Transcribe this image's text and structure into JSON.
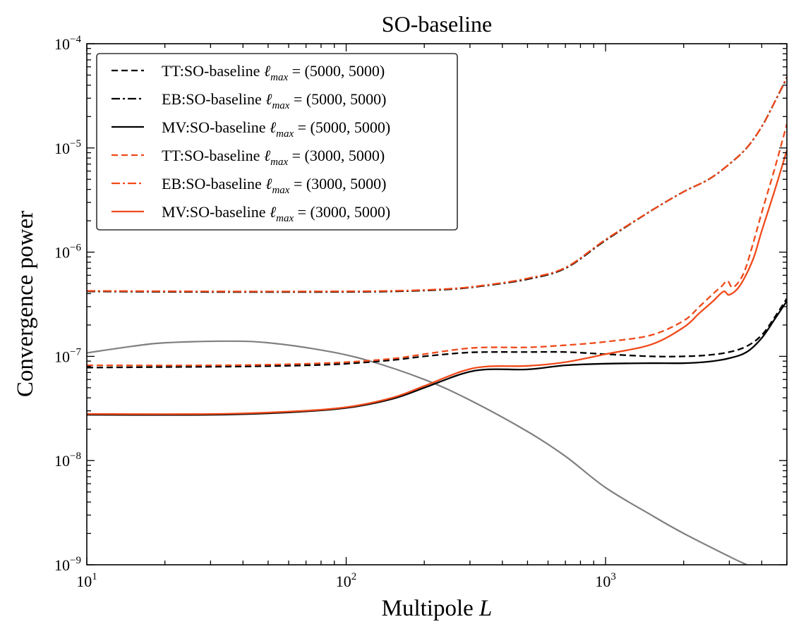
{
  "chart_data": {
    "type": "line",
    "title": "SO-baseline",
    "xlabel": "Multipole",
    "xlabel_var": "L",
    "ylabel": "Convergence power",
    "xscale": "log",
    "yscale": "log",
    "xlim": [
      10,
      5000
    ],
    "ylim": [
      1e-09,
      0.0001
    ],
    "grid": false,
    "legend_position": "top-left",
    "x_ticks": [
      {
        "value": 10,
        "base": "10",
        "exp": "1"
      },
      {
        "value": 100,
        "base": "10",
        "exp": "2"
      },
      {
        "value": 1000,
        "base": "10",
        "exp": "3"
      }
    ],
    "y_ticks": [
      {
        "value": 1e-09,
        "base": "10",
        "exp": "−9"
      },
      {
        "value": 1e-08,
        "base": "10",
        "exp": "−8"
      },
      {
        "value": 1e-07,
        "base": "10",
        "exp": "−7"
      },
      {
        "value": 1e-06,
        "base": "10",
        "exp": "−6"
      },
      {
        "value": 1e-05,
        "base": "10",
        "exp": "−5"
      },
      {
        "value": 0.0001,
        "base": "10",
        "exp": "−4"
      }
    ],
    "series": [
      {
        "name": "TT:SO-baseline",
        "ell_max": "(5000, 5000)",
        "color": "#000000",
        "style": "dashed",
        "points": [
          [
            10,
            7.8e-08
          ],
          [
            20,
            7.9e-08
          ],
          [
            40,
            8e-08
          ],
          [
            70,
            8.2e-08
          ],
          [
            100,
            8.5e-08
          ],
          [
            150,
            9.2e-08
          ],
          [
            200,
            1e-07
          ],
          [
            280,
            1.08e-07
          ],
          [
            350,
            1.1e-07
          ],
          [
            500,
            1.1e-07
          ],
          [
            700,
            1.1e-07
          ],
          [
            1000,
            1.05e-07
          ],
          [
            1500,
            1e-07
          ],
          [
            2000,
            1e-07
          ],
          [
            2500,
            1.03e-07
          ],
          [
            3000,
            1.1e-07
          ],
          [
            3500,
            1.25e-07
          ],
          [
            4000,
            1.6e-07
          ],
          [
            4500,
            2.4e-07
          ],
          [
            5000,
            3.6e-07
          ]
        ]
      },
      {
        "name": "EB:SO-baseline",
        "ell_max": "(5000, 5000)",
        "color": "#000000",
        "style": "dashdot",
        "points": [
          [
            10,
            4.2e-07
          ],
          [
            30,
            4.15e-07
          ],
          [
            80,
            4.15e-07
          ],
          [
            150,
            4.2e-07
          ],
          [
            250,
            4.4e-07
          ],
          [
            350,
            4.8e-07
          ],
          [
            500,
            5.5e-07
          ],
          [
            700,
            7e-07
          ],
          [
            1000,
            1.3e-06
          ],
          [
            1500,
            2.5e-06
          ],
          [
            2000,
            3.8e-06
          ],
          [
            2500,
            5e-06
          ],
          [
            3000,
            7e-06
          ],
          [
            3500,
            1e-05
          ],
          [
            4000,
            1.6e-05
          ],
          [
            4500,
            2.8e-05
          ],
          [
            5000,
            4.7e-05
          ]
        ]
      },
      {
        "name": "MV:SO-baseline",
        "ell_max": "(5000, 5000)",
        "color": "#000000",
        "style": "solid",
        "points": [
          [
            10,
            2.75e-08
          ],
          [
            30,
            2.75e-08
          ],
          [
            60,
            2.9e-08
          ],
          [
            100,
            3.2e-08
          ],
          [
            150,
            3.9e-08
          ],
          [
            200,
            5e-08
          ],
          [
            280,
            6.8e-08
          ],
          [
            350,
            7.5e-08
          ],
          [
            500,
            7.5e-08
          ],
          [
            700,
            8.2e-08
          ],
          [
            1000,
            8.5e-08
          ],
          [
            1500,
            8.6e-08
          ],
          [
            2000,
            8.6e-08
          ],
          [
            2500,
            8.9e-08
          ],
          [
            3000,
            9.6e-08
          ],
          [
            3500,
            1.1e-07
          ],
          [
            4000,
            1.5e-07
          ],
          [
            4500,
            2.3e-07
          ],
          [
            5000,
            3.4e-07
          ]
        ]
      },
      {
        "name": "TT:SO-baseline",
        "ell_max": "(3000, 5000)",
        "color": "#f04a1a",
        "style": "dashed",
        "points": [
          [
            10,
            8.2e-08
          ],
          [
            30,
            8.2e-08
          ],
          [
            60,
            8.4e-08
          ],
          [
            100,
            8.8e-08
          ],
          [
            150,
            9.5e-08
          ],
          [
            200,
            1.05e-07
          ],
          [
            280,
            1.18e-07
          ],
          [
            350,
            1.22e-07
          ],
          [
            500,
            1.22e-07
          ],
          [
            700,
            1.28e-07
          ],
          [
            1000,
            1.38e-07
          ],
          [
            1500,
            1.6e-07
          ],
          [
            2000,
            2.2e-07
          ],
          [
            2300,
            3e-07
          ],
          [
            2600,
            4e-07
          ],
          [
            2800,
            4.7e-07
          ],
          [
            2950,
            5.3e-07
          ],
          [
            3100,
            4.6e-07
          ],
          [
            3400,
            6.2e-07
          ],
          [
            3700,
            1.2e-06
          ],
          [
            4000,
            2.4e-06
          ],
          [
            4500,
            6.5e-06
          ],
          [
            5000,
            1.7e-05
          ]
        ]
      },
      {
        "name": "EB:SO-baseline",
        "ell_max": "(3000, 5000)",
        "color": "#f04a1a",
        "style": "dashdot",
        "points": [
          [
            10,
            4.25e-07
          ],
          [
            30,
            4.2e-07
          ],
          [
            80,
            4.2e-07
          ],
          [
            150,
            4.25e-07
          ],
          [
            250,
            4.45e-07
          ],
          [
            350,
            4.85e-07
          ],
          [
            500,
            5.6e-07
          ],
          [
            700,
            7.1e-07
          ],
          [
            1000,
            1.32e-06
          ],
          [
            1500,
            2.5e-06
          ],
          [
            2000,
            3.8e-06
          ],
          [
            2500,
            5e-06
          ],
          [
            3000,
            7e-06
          ],
          [
            3500,
            1e-05
          ],
          [
            4000,
            1.6e-05
          ],
          [
            4500,
            2.8e-05
          ],
          [
            5000,
            4.8e-05
          ]
        ]
      },
      {
        "name": "MV:SO-baseline",
        "ell_max": "(3000, 5000)",
        "color": "#f04a1a",
        "style": "solid",
        "points": [
          [
            10,
            2.8e-08
          ],
          [
            30,
            2.8e-08
          ],
          [
            60,
            2.95e-08
          ],
          [
            100,
            3.25e-08
          ],
          [
            150,
            4e-08
          ],
          [
            200,
            5.2e-08
          ],
          [
            280,
            7.2e-08
          ],
          [
            350,
            8e-08
          ],
          [
            500,
            8.1e-08
          ],
          [
            700,
            8.8e-08
          ],
          [
            1000,
            1.05e-07
          ],
          [
            1500,
            1.3e-07
          ],
          [
            2000,
            1.9e-07
          ],
          [
            2300,
            2.6e-07
          ],
          [
            2600,
            3.4e-07
          ],
          [
            2850,
            4.2e-07
          ],
          [
            3000,
            3.9e-07
          ],
          [
            3300,
            4.8e-07
          ],
          [
            3700,
            8.5e-07
          ],
          [
            4000,
            1.6e-06
          ],
          [
            4500,
            4e-06
          ],
          [
            5000,
            9.5e-06
          ]
        ]
      },
      {
        "name": "",
        "color": "#808080",
        "style": "solid",
        "points": [
          [
            10,
            1.08e-07
          ],
          [
            15,
            1.25e-07
          ],
          [
            20,
            1.35e-07
          ],
          [
            35,
            1.4e-07
          ],
          [
            50,
            1.35e-07
          ],
          [
            80,
            1.15e-07
          ],
          [
            120,
            9.2e-08
          ],
          [
            200,
            6e-08
          ],
          [
            300,
            3.8e-08
          ],
          [
            500,
            1.9e-08
          ],
          [
            700,
            1.1e-08
          ],
          [
            1000,
            5.5e-09
          ],
          [
            1500,
            3e-09
          ],
          [
            2000,
            2e-09
          ],
          [
            3000,
            1.2e-09
          ],
          [
            3500,
            1e-09
          ]
        ]
      }
    ]
  }
}
